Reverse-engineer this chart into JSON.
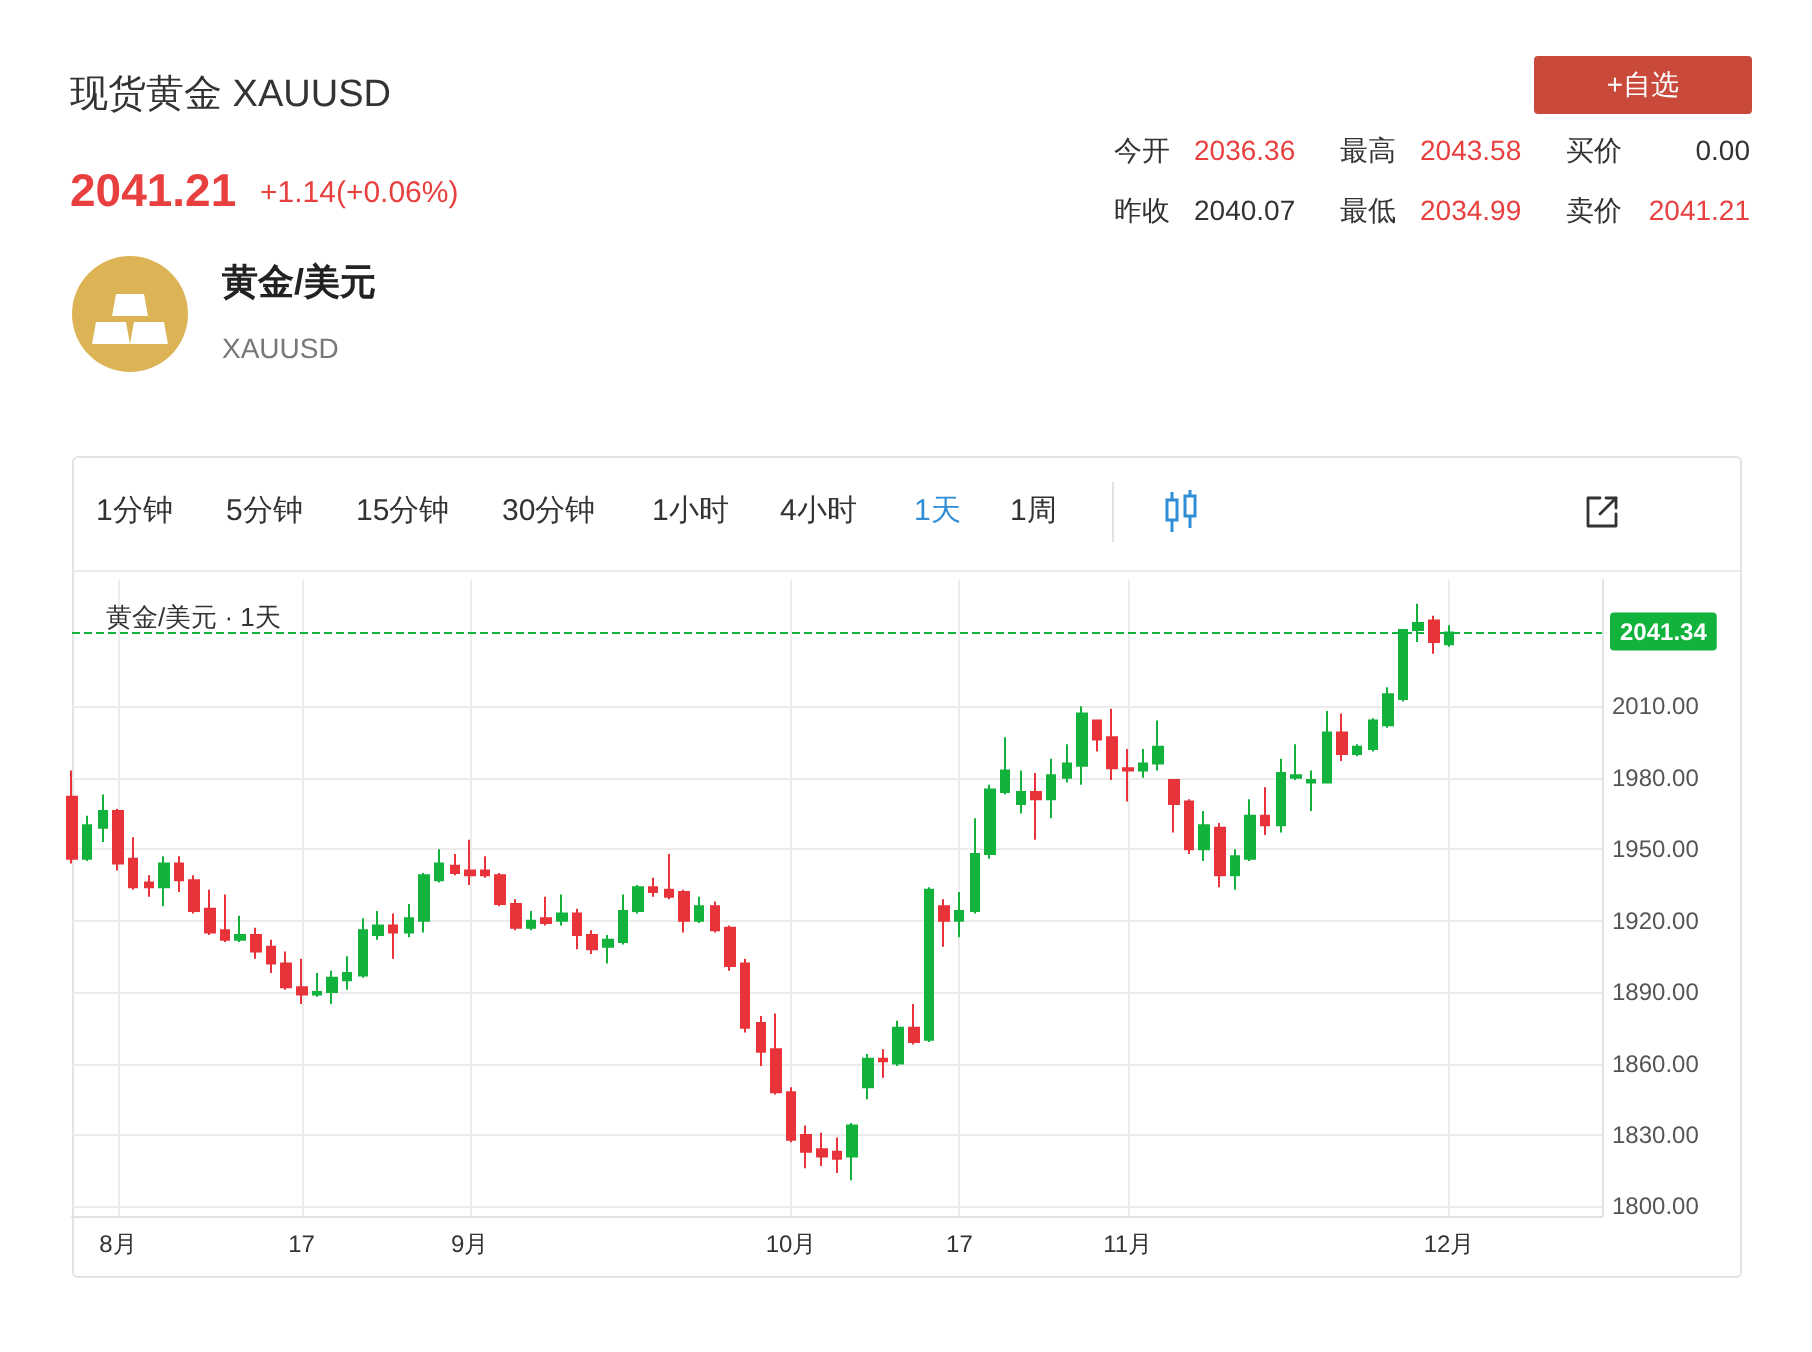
{
  "chart_data": [
    {
      "type": "other",
      "title": "现货黄金 XAUUSD",
      "annotations": [
        "2041.21",
        "+1.14(+0.06%)",
        "黄金/美元",
        "XAUUSD",
        "今开",
        "2036.36",
        "最高",
        "2043.58",
        "买价",
        "0.00",
        "昨收",
        "2040.07",
        "最低",
        "2034.99",
        "卖价",
        "2041.21",
        "+自选"
      ]
    },
    {
      "type": "candlestick",
      "title": "黄金/美元 · 1天",
      "annotations": [
        "1分钟",
        "5分钟",
        "15分钟",
        "30分钟",
        "1小时",
        "4小时",
        "1天",
        "1周"
      ],
      "categories": [
        null,
        null,
        null,
        "8月",
        null,
        null,
        null,
        null,
        null,
        null,
        null,
        null,
        null,
        null,
        null,
        "17",
        null,
        null,
        null,
        null,
        null,
        null,
        null,
        null,
        null,
        null,
        "9月",
        null,
        null,
        null,
        null,
        null,
        null,
        null,
        null,
        null,
        null,
        null,
        null,
        null,
        null,
        null,
        null,
        null,
        null,
        null,
        null,
        "10月",
        null,
        null,
        null,
        null,
        null,
        null,
        null,
        null,
        null,
        null,
        "17",
        null,
        null,
        null,
        null,
        null,
        null,
        null,
        null,
        null,
        null,
        "11月",
        null,
        null,
        null,
        null,
        null,
        null,
        null,
        null,
        null,
        null,
        null,
        null,
        null,
        null,
        null,
        null,
        null,
        null,
        null,
        null,
        "12月",
        null,
        null,
        null,
        null,
        null,
        null,
        null,
        null,
        null,
        null
      ],
      "ohlc": [
        [
          1972,
          1983,
          1944,
          1946
        ],
        [
          1946,
          1964,
          1945,
          1960
        ],
        [
          1959,
          1973,
          1953,
          1966
        ],
        [
          1966,
          1967,
          1941,
          1944
        ],
        [
          1946,
          1955,
          1933,
          1934
        ],
        [
          1936,
          1939,
          1930,
          1934
        ],
        [
          1934,
          1947,
          1926,
          1944
        ],
        [
          1944,
          1947,
          1932,
          1937
        ],
        [
          1937,
          1939,
          1923,
          1924
        ],
        [
          1925,
          1933,
          1914,
          1915
        ],
        [
          1916,
          1931,
          1911,
          1912
        ],
        [
          1912,
          1922,
          1911,
          1914
        ],
        [
          1914,
          1917,
          1904,
          1907
        ],
        [
          1909,
          1912,
          1898,
          1902
        ],
        [
          1902,
          1907,
          1891,
          1892
        ],
        [
          1892,
          1904,
          1885,
          1889
        ],
        [
          1889,
          1898,
          1888,
          1890
        ],
        [
          1890,
          1899,
          1885,
          1896
        ],
        [
          1895,
          1905,
          1891,
          1898
        ],
        [
          1897,
          1921,
          1896,
          1916
        ],
        [
          1914,
          1924,
          1912,
          1918
        ],
        [
          1918,
          1923,
          1904,
          1915
        ],
        [
          1915,
          1927,
          1913,
          1921
        ],
        [
          1920,
          1940,
          1915,
          1939
        ],
        [
          1937,
          1950,
          1936,
          1944
        ],
        [
          1943,
          1948,
          1939,
          1940
        ],
        [
          1941,
          1954,
          1935,
          1939
        ],
        [
          1941,
          1947,
          1938,
          1939
        ],
        [
          1939,
          1940,
          1926,
          1927
        ],
        [
          1927,
          1929,
          1916,
          1917
        ],
        [
          1917,
          1924,
          1916,
          1920
        ],
        [
          1921,
          1930,
          1918,
          1919
        ],
        [
          1920,
          1931,
          1918,
          1923
        ],
        [
          1923,
          1925,
          1908,
          1914
        ],
        [
          1914,
          1916,
          1906,
          1908
        ],
        [
          1909,
          1914,
          1902,
          1912
        ],
        [
          1911,
          1931,
          1910,
          1924
        ],
        [
          1924,
          1935,
          1923,
          1934
        ],
        [
          1934,
          1938,
          1930,
          1932
        ],
        [
          1933,
          1948,
          1929,
          1930
        ],
        [
          1932,
          1933,
          1915,
          1920
        ],
        [
          1920,
          1930,
          1919,
          1926
        ],
        [
          1926,
          1928,
          1915,
          1916
        ],
        [
          1917,
          1918,
          1899,
          1901
        ],
        [
          1902,
          1904,
          1873,
          1875
        ],
        [
          1877,
          1880,
          1859,
          1865
        ],
        [
          1866,
          1881,
          1847,
          1848
        ],
        [
          1848,
          1850,
          1827,
          1828
        ],
        [
          1830,
          1834,
          1816,
          1823
        ],
        [
          1824,
          1831,
          1817,
          1821
        ],
        [
          1823,
          1829,
          1814,
          1820
        ],
        [
          1821,
          1835,
          1811,
          1834
        ],
        [
          1850,
          1864,
          1845,
          1862
        ],
        [
          1862,
          1866,
          1854,
          1861
        ],
        [
          1860,
          1878,
          1859,
          1875
        ],
        [
          1875,
          1885,
          1868,
          1869
        ],
        [
          1870,
          1934,
          1869,
          1933
        ],
        [
          1926,
          1929,
          1909,
          1920
        ],
        [
          1920,
          1932,
          1913,
          1924
        ],
        [
          1924,
          1963,
          1923,
          1948
        ],
        [
          1948,
          1977,
          1946,
          1975
        ],
        [
          1974,
          1997,
          1973,
          1983
        ],
        [
          1969,
          1983,
          1965,
          1974
        ],
        [
          1974,
          1982,
          1954,
          1971
        ],
        [
          1971,
          1988,
          1963,
          1981
        ],
        [
          1980,
          1994,
          1978,
          1986
        ],
        [
          1985,
          2010,
          1977,
          2007
        ],
        [
          2004,
          2004,
          1991,
          1996
        ],
        [
          1997,
          2009,
          1979,
          1984
        ],
        [
          1984,
          1992,
          1970,
          1983
        ],
        [
          1983,
          1992,
          1980,
          1986
        ],
        [
          1986,
          2004,
          1983,
          1993
        ],
        [
          1979,
          1979,
          1957,
          1969
        ],
        [
          1970,
          1971,
          1948,
          1950
        ],
        [
          1950,
          1966,
          1945,
          1960
        ],
        [
          1959,
          1961,
          1934,
          1939
        ],
        [
          1939,
          1950,
          1933,
          1947
        ],
        [
          1946,
          1971,
          1945,
          1964
        ],
        [
          1964,
          1976,
          1956,
          1960
        ],
        [
          1960,
          1988,
          1957,
          1982
        ],
        [
          1980,
          1994,
          1979,
          1981
        ],
        [
          1978,
          1983,
          1966,
          1979
        ],
        [
          1978,
          2008,
          1978,
          1999
        ],
        [
          1999,
          2007,
          1987,
          1990
        ],
        [
          1990,
          1994,
          1989,
          1993
        ],
        [
          1992,
          2005,
          1991,
          2004
        ],
        [
          2002,
          2018,
          2001,
          2015
        ],
        [
          2013,
          2042,
          2012,
          2042
        ],
        [
          2042,
          2053,
          2037,
          2045
        ],
        [
          2046,
          2048,
          2032,
          2037
        ],
        [
          2036,
          2044,
          2035,
          2041
        ],
        null,
        null,
        null,
        null,
        null,
        null,
        null,
        null,
        null,
        null
      ],
      "colors": [
        "#e8333a",
        "#12b33d",
        "#12b33d",
        "#e8333a",
        "#e8333a",
        "#e8333a",
        "#12b33d",
        "#e8333a",
        "#e8333a",
        "#e8333a",
        "#e8333a",
        "#12b33d",
        "#e8333a",
        "#e8333a",
        "#e8333a",
        "#e8333a",
        "#12b33d",
        "#12b33d",
        "#12b33d",
        "#12b33d",
        "#12b33d",
        "#e8333a",
        "#12b33d",
        "#12b33d",
        "#12b33d",
        "#e8333a",
        "#e8333a",
        "#e8333a",
        "#e8333a",
        "#e8333a",
        "#12b33d",
        "#e8333a",
        "#12b33d",
        "#e8333a",
        "#e8333a",
        "#12b33d",
        "#12b33d",
        "#12b33d",
        "#e8333a",
        "#e8333a",
        "#e8333a",
        "#12b33d",
        "#e8333a",
        "#e8333a",
        "#e8333a",
        "#e8333a",
        "#e8333a",
        "#e8333a",
        "#e8333a",
        "#e8333a",
        "#e8333a",
        "#12b33d",
        "#12b33d",
        "#e8333a",
        "#12b33d",
        "#e8333a",
        "#12b33d",
        "#e8333a",
        "#12b33d",
        "#12b33d",
        "#12b33d",
        "#12b33d",
        "#12b33d",
        "#e8333a",
        "#12b33d",
        "#12b33d",
        "#12b33d",
        "#e8333a",
        "#e8333a",
        "#e8333a",
        "#12b33d",
        "#12b33d",
        "#e8333a",
        "#e8333a",
        "#12b33d",
        "#e8333a",
        "#12b33d",
        "#12b33d",
        "#e8333a",
        "#12b33d",
        "#12b33d",
        "#12b33d",
        "#12b33d",
        "#e8333a",
        "#12b33d",
        "#12b33d",
        "#12b33d",
        "#12b33d",
        "#12b33d",
        "#e8333a",
        "#12b33d",
        null,
        null,
        null,
        null,
        null,
        null,
        null,
        null,
        null,
        null
      ],
      "ylim": [
        1796,
        2063
      ],
      "yticks": [
        {
          "value": 1800,
          "label": "1800.00"
        },
        {
          "value": 1830,
          "label": "1830.00"
        },
        {
          "value": 1860,
          "label": "1860.00"
        },
        {
          "value": 1890,
          "label": "1890.00"
        },
        {
          "value": 1920,
          "label": "1920.00"
        },
        {
          "value": 1950,
          "label": "1950.00"
        },
        {
          "value": 1980,
          "label": "1980.00"
        },
        {
          "value": 2010,
          "label": "2010.00"
        }
      ],
      "ref_lines": [
        {
          "axis": "y",
          "value": 2041.34,
          "label": "2041.34",
          "color": "#12b33d",
          "line_style": "dashed"
        }
      ],
      "grid": true
    }
  ]
}
